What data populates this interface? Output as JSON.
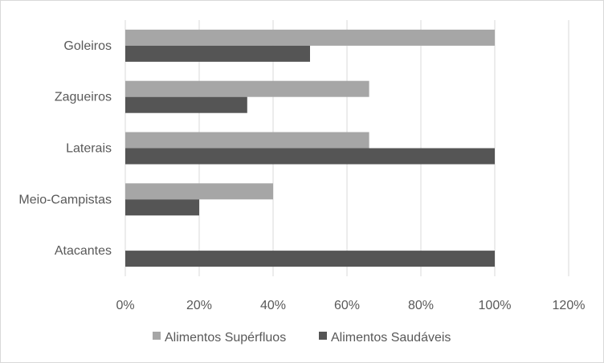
{
  "chart_data": {
    "type": "bar",
    "orientation": "horizontal",
    "categories": [
      "Goleiros",
      "Zagueiros",
      "Laterais",
      "Meio-Campistas",
      "Atacantes"
    ],
    "series": [
      {
        "name": "Alimentos Supérfluos",
        "color": "#a6a6a6",
        "values": [
          100,
          66,
          66,
          40,
          0
        ]
      },
      {
        "name": "Alimentos Saudáveis",
        "color": "#555555",
        "values": [
          50,
          33,
          100,
          20,
          100
        ]
      }
    ],
    "xlim": [
      0,
      120
    ],
    "xticks": [
      "0%",
      "20%",
      "40%",
      "60%",
      "80%",
      "100%",
      "120%"
    ],
    "grid": true,
    "legend": "bottom",
    "title": "",
    "xlabel": "",
    "ylabel": ""
  }
}
